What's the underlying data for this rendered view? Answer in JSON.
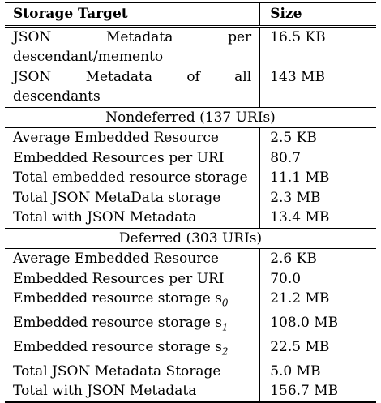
{
  "header": {
    "col1": "Storage Target",
    "col2": "Size"
  },
  "top_rows": [
    {
      "label": "JSON Metadata per descendant/memento",
      "value": "16.5 KB"
    },
    {
      "label": "JSON Metadata of all descendants",
      "value": "143 MB"
    }
  ],
  "nondeferred": {
    "title": "Nondeferred (137 URIs)",
    "rows": [
      {
        "label": "Average Embedded Resource",
        "value": "2.5 KB"
      },
      {
        "label": "Embedded Resources per URI",
        "value": "80.7"
      },
      {
        "label": "Total embedded resource storage",
        "value": "11.1 MB"
      },
      {
        "label": "Total JSON MetaData storage",
        "value": "2.3 MB"
      },
      {
        "label": "Total with JSON Metadata",
        "value": "13.4 MB"
      }
    ]
  },
  "deferred": {
    "title": "Deferred (303 URIs)",
    "rows": [
      {
        "label": "Average Embedded Resource",
        "value": "2.6 KB"
      },
      {
        "label": "Embedded Resources per URI",
        "value": "70.0"
      },
      {
        "label": "Embedded resource storage s",
        "sub": "0",
        "value": "21.2 MB"
      },
      {
        "label": "Embedded resource storage s",
        "sub": "1",
        "value": "108.0 MB"
      },
      {
        "label": "Embedded resource storage s",
        "sub": "2",
        "value": "22.5 MB"
      },
      {
        "label": "Total JSON Metadata Storage",
        "value": "5.0 MB"
      },
      {
        "label": "Total with JSON Metadata",
        "value": "156.7 MB"
      }
    ]
  }
}
